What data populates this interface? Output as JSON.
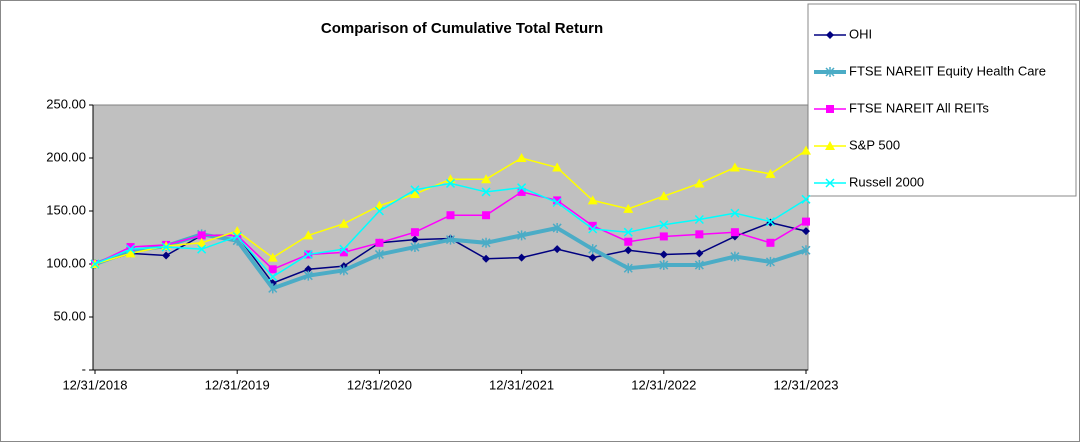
{
  "chart_data": {
    "type": "line",
    "title": "Comparison of Cumulative Total Return",
    "categories": [
      "12/31/2018",
      null,
      null,
      null,
      "12/31/2019",
      null,
      null,
      null,
      "12/31/2020",
      null,
      null,
      null,
      "12/31/2021",
      null,
      null,
      null,
      "12/31/2022",
      null,
      null,
      null,
      "12/31/2023"
    ],
    "ylim": [
      0,
      250
    ],
    "yticks": [
      {
        "value": 0,
        "label": "-"
      },
      {
        "value": 50,
        "label": "50.00"
      },
      {
        "value": 100,
        "label": "100.00"
      },
      {
        "value": 150,
        "label": "150.00"
      },
      {
        "value": 200,
        "label": "200.00"
      },
      {
        "value": 250,
        "label": "250.00"
      }
    ],
    "grid": false,
    "legend": "right",
    "background": "#c0c0c0",
    "series": [
      {
        "name": "OHI",
        "color": "#000080",
        "marker": "diamond",
        "line_width": 1.5,
        "values": [
          100,
          110,
          108,
          127,
          127,
          82,
          95,
          98,
          120,
          123,
          124,
          105,
          106,
          114,
          106,
          113,
          109,
          110,
          126,
          139,
          131
        ]
      },
      {
        "name": "FTSE NAREIT Equity Health Care",
        "color": "#4bacc6",
        "marker": "asterisk",
        "line_width": 4,
        "values": [
          100,
          112,
          117,
          128,
          122,
          77,
          89,
          94,
          109,
          116,
          123,
          120,
          127,
          134,
          114,
          96,
          99,
          99,
          107,
          102,
          113
        ]
      },
      {
        "name": "FTSE NAREIT All REITs",
        "color": "#ff00ff",
        "marker": "square",
        "line_width": 1.5,
        "values": [
          100,
          116,
          118,
          127,
          127,
          95,
          109,
          111,
          120,
          130,
          146,
          146,
          168,
          160,
          136,
          121,
          126,
          128,
          130,
          120,
          140
        ]
      },
      {
        "name": "S&P 500",
        "color": "#ffff00",
        "marker": "triangle",
        "line_width": 1.5,
        "values": [
          100,
          110,
          117,
          120,
          131,
          106,
          127,
          138,
          155,
          166,
          180,
          180,
          200,
          191,
          160,
          152,
          164,
          176,
          191,
          185,
          207
        ]
      },
      {
        "name": "Russell 2000",
        "color": "#00ffff",
        "marker": "x",
        "line_width": 1.5,
        "values": [
          100,
          114,
          116,
          114,
          126,
          88,
          109,
          114,
          150,
          170,
          176,
          168,
          172,
          158,
          133,
          130,
          137,
          142,
          148,
          140,
          161
        ]
      }
    ]
  }
}
